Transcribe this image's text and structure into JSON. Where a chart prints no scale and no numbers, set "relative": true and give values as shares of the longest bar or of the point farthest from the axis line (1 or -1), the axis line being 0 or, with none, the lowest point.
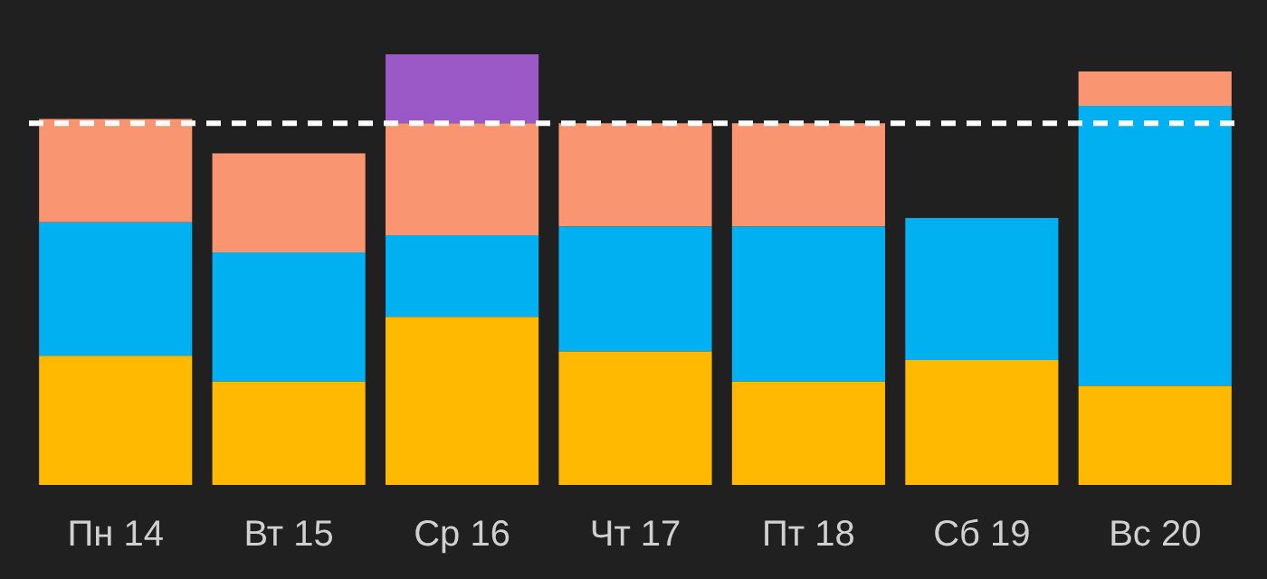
{
  "chart_data": {
    "type": "bar",
    "stacked": true,
    "relative": true,
    "categories": [
      "Пн 14",
      "Вт 15",
      "Ср 16",
      "Чт 17",
      "Пт 18",
      "Сб 19",
      "Вс 20"
    ],
    "series": [
      {
        "color": "#ffb900",
        "values": [
          0.3,
          0.24,
          0.39,
          0.31,
          0.24,
          0.29,
          0.23
        ]
      },
      {
        "color": "#00b0f0",
        "values": [
          0.31,
          0.3,
          0.19,
          0.29,
          0.36,
          0.33,
          0.65
        ]
      },
      {
        "color": "#f99570",
        "values": [
          0.24,
          0.23,
          0.26,
          0.24,
          0.24,
          null,
          0.08
        ]
      },
      {
        "color": "#9b59c8",
        "values": [
          null,
          null,
          0.16,
          null,
          null,
          null,
          null
        ]
      }
    ],
    "ref_lines": [
      {
        "axis": "y",
        "value": 0.84,
        "color": "#ffffff",
        "line_style": "dashed"
      }
    ]
  }
}
